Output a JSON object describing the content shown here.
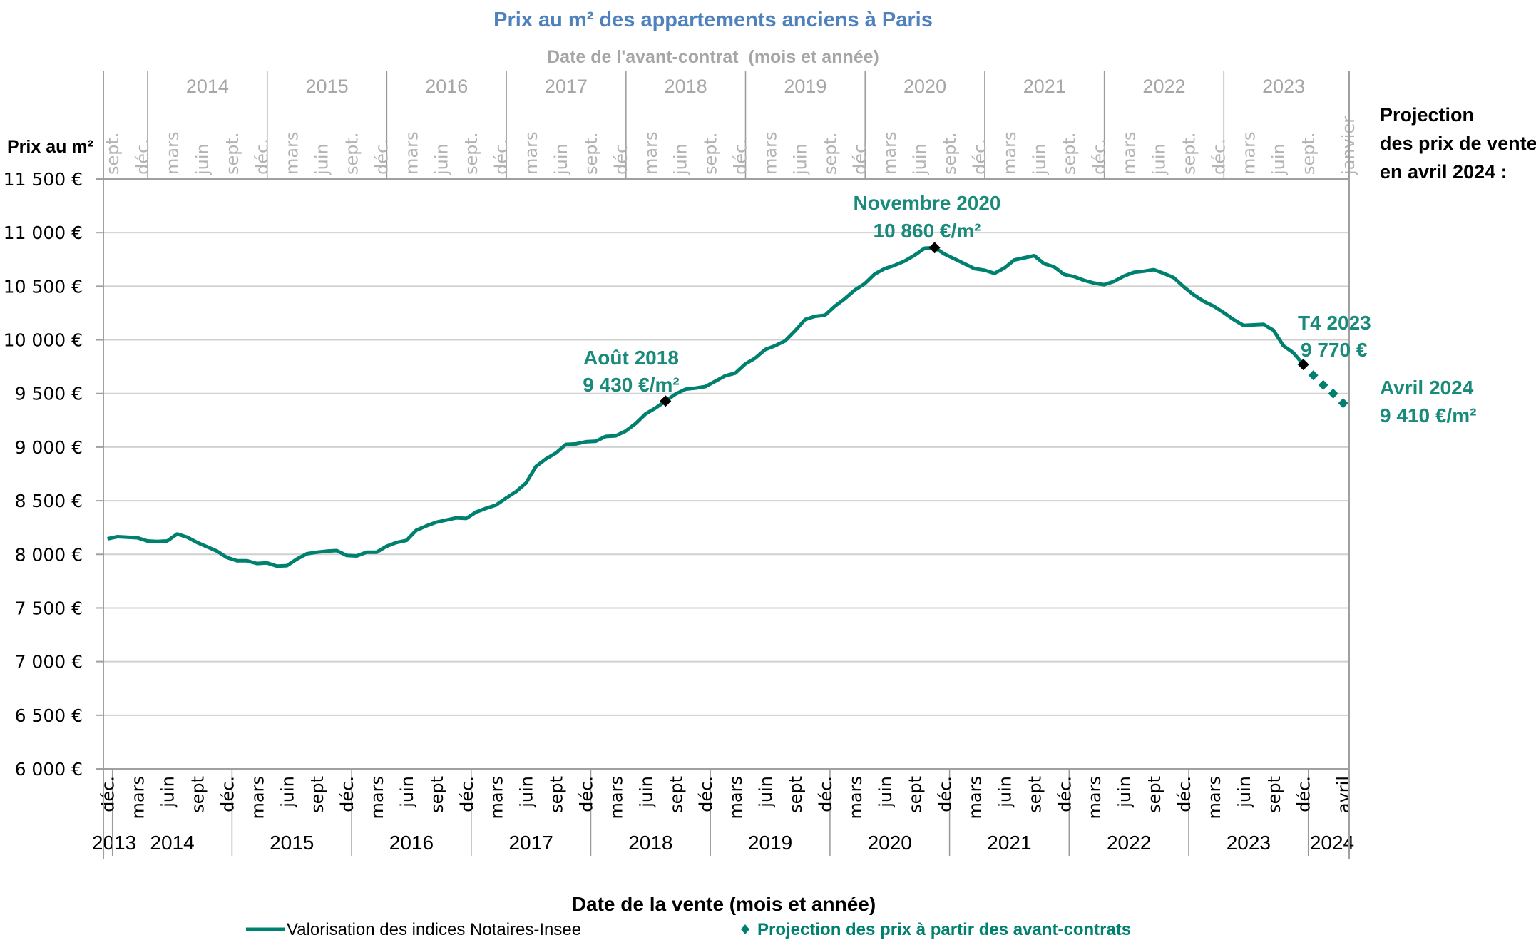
{
  "chart_data": {
    "type": "line",
    "title": "Prix au m² des appartements anciens à Paris",
    "top_axis_label": "Date de l'avant-contrat  (mois et année)",
    "ylabel": "Prix au m²",
    "xlabel": "Date de la vente (mois et année)",
    "ylim": [
      6000,
      11500
    ],
    "yticks": [
      11500,
      11000,
      10500,
      10000,
      9500,
      9000,
      8500,
      8000,
      7500,
      7000,
      6500,
      6000
    ],
    "ytick_labels": [
      "11 500 €",
      "11 000 €",
      "10 500 €",
      "10 000 €",
      "9 500 €",
      "9 000 €",
      "8 500 €",
      "8 000 €",
      "7 500 €",
      "7 000 €",
      "6 500 €",
      "6 000 €"
    ],
    "grid": true,
    "x_start": "2013-12",
    "x_end": "2024-04",
    "bottom_axis": {
      "month_ticks": [
        {
          "label": "déc.",
          "month": "2013-12"
        },
        {
          "label": "mars",
          "month": "2014-03"
        },
        {
          "label": "juin",
          "month": "2014-06"
        },
        {
          "label": "sept",
          "month": "2014-09"
        },
        {
          "label": "déc.",
          "month": "2014-12"
        },
        {
          "label": "mars",
          "month": "2015-03"
        },
        {
          "label": "juin",
          "month": "2015-06"
        },
        {
          "label": "sept",
          "month": "2015-09"
        },
        {
          "label": "déc.",
          "month": "2015-12"
        },
        {
          "label": "mars",
          "month": "2016-03"
        },
        {
          "label": "juin",
          "month": "2016-06"
        },
        {
          "label": "sept",
          "month": "2016-09"
        },
        {
          "label": "déc.",
          "month": "2016-12"
        },
        {
          "label": "mars",
          "month": "2017-03"
        },
        {
          "label": "juin",
          "month": "2017-06"
        },
        {
          "label": "sept",
          "month": "2017-09"
        },
        {
          "label": "déc.",
          "month": "2017-12"
        },
        {
          "label": "mars",
          "month": "2018-03"
        },
        {
          "label": "juin",
          "month": "2018-06"
        },
        {
          "label": "sept",
          "month": "2018-09"
        },
        {
          "label": "déc.",
          "month": "2018-12"
        },
        {
          "label": "mars",
          "month": "2019-03"
        },
        {
          "label": "juin",
          "month": "2019-06"
        },
        {
          "label": "sept",
          "month": "2019-09"
        },
        {
          "label": "déc.",
          "month": "2019-12"
        },
        {
          "label": "mars",
          "month": "2020-03"
        },
        {
          "label": "juin",
          "month": "2020-06"
        },
        {
          "label": "sept",
          "month": "2020-09"
        },
        {
          "label": "déc.",
          "month": "2020-12"
        },
        {
          "label": "mars",
          "month": "2021-03"
        },
        {
          "label": "juin",
          "month": "2021-06"
        },
        {
          "label": "sept",
          "month": "2021-09"
        },
        {
          "label": "déc.",
          "month": "2021-12"
        },
        {
          "label": "mars",
          "month": "2022-03"
        },
        {
          "label": "juin",
          "month": "2022-06"
        },
        {
          "label": "sept",
          "month": "2022-09"
        },
        {
          "label": "déc.",
          "month": "2022-12"
        },
        {
          "label": "mars",
          "month": "2023-03"
        },
        {
          "label": "juin",
          "month": "2023-06"
        },
        {
          "label": "sept",
          "month": "2023-09"
        },
        {
          "label": "déc.",
          "month": "2023-12"
        },
        {
          "label": "avril",
          "month": "2024-04"
        }
      ],
      "years": [
        "2013",
        "2014",
        "2015",
        "2016",
        "2017",
        "2018",
        "2019",
        "2020",
        "2021",
        "2022",
        "2023",
        "2024"
      ]
    },
    "top_axis": {
      "month_ticks": [
        {
          "label": "sept.",
          "month": "2013-09"
        },
        {
          "label": "déc.",
          "month": "2013-12"
        },
        {
          "label": "mars",
          "month": "2014-03"
        },
        {
          "label": "juin",
          "month": "2014-06"
        },
        {
          "label": "sept.",
          "month": "2014-09"
        },
        {
          "label": "déc.",
          "month": "2014-12"
        },
        {
          "label": "mars",
          "month": "2015-03"
        },
        {
          "label": "juin",
          "month": "2015-06"
        },
        {
          "label": "sept.",
          "month": "2015-09"
        },
        {
          "label": "déc.",
          "month": "2015-12"
        },
        {
          "label": "mars",
          "month": "2016-03"
        },
        {
          "label": "juin",
          "month": "2016-06"
        },
        {
          "label": "sept.",
          "month": "2016-09"
        },
        {
          "label": "déc.",
          "month": "2016-12"
        },
        {
          "label": "mars",
          "month": "2017-03"
        },
        {
          "label": "juin",
          "month": "2017-06"
        },
        {
          "label": "sept.",
          "month": "2017-09"
        },
        {
          "label": "déc.",
          "month": "2017-12"
        },
        {
          "label": "mars",
          "month": "2018-03"
        },
        {
          "label": "juin",
          "month": "2018-06"
        },
        {
          "label": "sept.",
          "month": "2018-09"
        },
        {
          "label": "déc.",
          "month": "2018-12"
        },
        {
          "label": "mars",
          "month": "2019-03"
        },
        {
          "label": "juin",
          "month": "2019-06"
        },
        {
          "label": "sept.",
          "month": "2019-09"
        },
        {
          "label": "déc.",
          "month": "2019-12"
        },
        {
          "label": "mars",
          "month": "2020-03"
        },
        {
          "label": "juin",
          "month": "2020-06"
        },
        {
          "label": "sept.",
          "month": "2020-09"
        },
        {
          "label": "déc.",
          "month": "2020-12"
        },
        {
          "label": "mars",
          "month": "2021-03"
        },
        {
          "label": "juin",
          "month": "2021-06"
        },
        {
          "label": "sept.",
          "month": "2021-09"
        },
        {
          "label": "déc.",
          "month": "2021-12"
        },
        {
          "label": "mars",
          "month": "2022-03"
        },
        {
          "label": "juin",
          "month": "2022-06"
        },
        {
          "label": "sept.",
          "month": "2022-09"
        },
        {
          "label": "déc.",
          "month": "2022-12"
        },
        {
          "label": "mars",
          "month": "2023-03"
        },
        {
          "label": "juin",
          "month": "2023-06"
        },
        {
          "label": "sept.",
          "month": "2023-09"
        },
        {
          "label": "janvier",
          "month": "2024-01"
        }
      ],
      "x_start": "2013-09",
      "x_end": "2024-01",
      "years": [
        "2014",
        "2015",
        "2016",
        "2017",
        "2018",
        "2019",
        "2020",
        "2021",
        "2022",
        "2023"
      ]
    },
    "series": [
      {
        "name": "Valorisation des indices Notaires-Insee",
        "style": "solid-line",
        "color": "#00806e",
        "start_month": "2013-12",
        "values": [
          8145,
          8165,
          8160,
          8155,
          8125,
          8120,
          8125,
          8190,
          8160,
          8110,
          8070,
          8030,
          7970,
          7940,
          7940,
          7915,
          7920,
          7890,
          7895,
          7955,
          8005,
          8020,
          8030,
          8035,
          7990,
          7985,
          8020,
          8020,
          8075,
          8110,
          8130,
          8225,
          8265,
          8300,
          8320,
          8340,
          8335,
          8395,
          8430,
          8460,
          8525,
          8585,
          8665,
          8820,
          8890,
          8945,
          9025,
          9030,
          9050,
          9055,
          9100,
          9105,
          9150,
          9220,
          9310,
          9365,
          9430,
          9495,
          9540,
          9550,
          9565,
          9615,
          9665,
          9690,
          9775,
          9830,
          9910,
          9945,
          9990,
          10085,
          10190,
          10220,
          10230,
          10315,
          10385,
          10465,
          10525,
          10615,
          10665,
          10695,
          10735,
          10790,
          10855,
          10860,
          10800,
          10755,
          10710,
          10665,
          10650,
          10620,
          10670,
          10745,
          10765,
          10785,
          10710,
          10680,
          10610,
          10590,
          10555,
          10530,
          10515,
          10545,
          10595,
          10630,
          10640,
          10655,
          10620,
          10580,
          10495,
          10420,
          10360,
          10315,
          10255,
          10190,
          10135,
          10140,
          10145,
          10090,
          9945,
          9880,
          9770
        ]
      },
      {
        "name": "Projection des prix à partir des avant-contrats",
        "style": "diamond-markers",
        "color": "#00806e",
        "months": [
          "2024-01",
          "2024-02",
          "2024-03",
          "2024-04"
        ],
        "values": [
          9670,
          9580,
          9500,
          9410
        ]
      }
    ],
    "highlight_points": [
      {
        "month": "2018-08",
        "value": 9430,
        "label_line1": "Août 2018",
        "label_line2": "9 430 €/m²"
      },
      {
        "month": "2020-11",
        "value": 10860,
        "label_line1": "Novembre 2020",
        "label_line2": "10 860 €/m²"
      },
      {
        "month": "2023-12",
        "value": 9770,
        "label_line1": "T4 2023",
        "label_line2": "9 770 €"
      }
    ],
    "projection_annotation": {
      "line1": "Avril 2024",
      "line2": "9 410 €/m²"
    },
    "side_note": [
      "Projection",
      "des prix de vente",
      "en avril 2024 :"
    ],
    "legend": [
      {
        "label": "Valorisation des indices Notaires-Insee",
        "marker": "line"
      },
      {
        "label": "Projection des prix à partir des avant-contrats",
        "marker": "diamond"
      }
    ],
    "legend_position": "bottom"
  },
  "colors": {
    "title": "#4f81bd",
    "series": "#00806e",
    "annotation": "#1a8a7a",
    "top_axis_text": "#a6a6a6",
    "highlight_marker": "#000000"
  }
}
